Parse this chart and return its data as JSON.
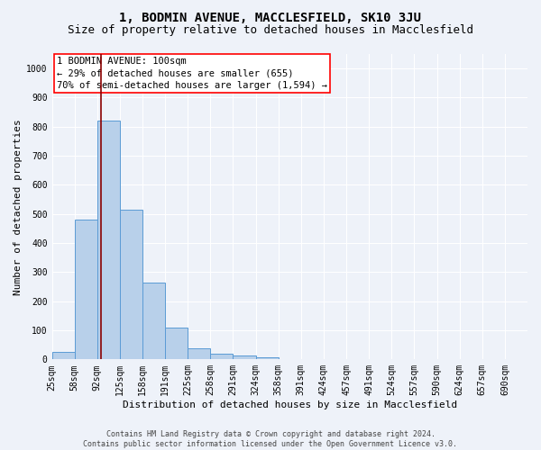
{
  "title": "1, BODMIN AVENUE, MACCLESFIELD, SK10 3JU",
  "subtitle": "Size of property relative to detached houses in Macclesfield",
  "xlabel": "Distribution of detached houses by size in Macclesfield",
  "ylabel": "Number of detached properties",
  "bar_values": [
    25,
    480,
    820,
    515,
    265,
    110,
    38,
    20,
    12,
    7,
    0,
    0,
    0,
    0,
    0,
    0,
    0,
    0,
    0,
    0
  ],
  "bin_labels": [
    "25sqm",
    "58sqm",
    "92sqm",
    "125sqm",
    "158sqm",
    "191sqm",
    "225sqm",
    "258sqm",
    "291sqm",
    "324sqm",
    "358sqm",
    "391sqm",
    "424sqm",
    "457sqm",
    "491sqm",
    "524sqm",
    "557sqm",
    "590sqm",
    "624sqm",
    "657sqm",
    "690sqm"
  ],
  "bar_color": "#b8d0ea",
  "bar_edge_color": "#5b9bd5",
  "ylim": [
    0,
    1050
  ],
  "yticks": [
    0,
    100,
    200,
    300,
    400,
    500,
    600,
    700,
    800,
    900,
    1000
  ],
  "property_label": "1 BODMIN AVENUE: 100sqm",
  "annotation_line1": "← 29% of detached houses are smaller (655)",
  "annotation_line2": "70% of semi-detached houses are larger (1,594) →",
  "vline_x_bar_index": 2.18,
  "footer_line1": "Contains HM Land Registry data © Crown copyright and database right 2024.",
  "footer_line2": "Contains public sector information licensed under the Open Government Licence v3.0.",
  "background_color": "#eef2f9",
  "grid_color": "#ffffff",
  "title_fontsize": 10,
  "subtitle_fontsize": 9,
  "tick_fontsize": 7,
  "ylabel_fontsize": 8,
  "xlabel_fontsize": 8,
  "annot_fontsize": 7.5,
  "footer_fontsize": 6
}
